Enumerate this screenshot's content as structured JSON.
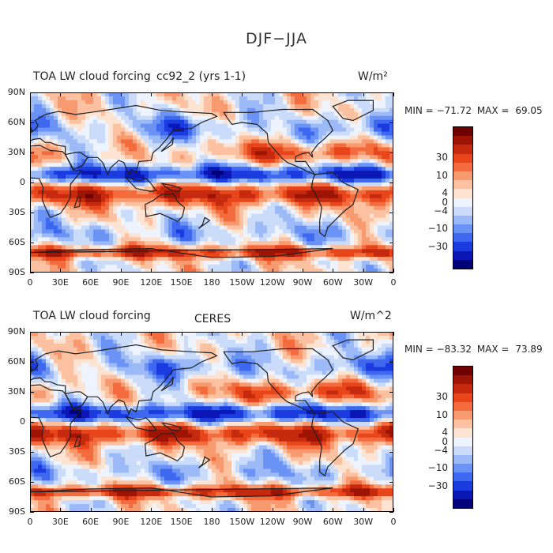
{
  "figure": {
    "title": "DJF−JJA",
    "colors": {
      "land": "#202020",
      "levels": [
        "#00007a",
        "#0a17b5",
        "#1a3be0",
        "#3d68ef",
        "#6a93f5",
        "#9cbaf8",
        "#cbdcfb",
        "#eef4ff",
        "#fde4d2",
        "#fbc1a0",
        "#f89a70",
        "#f46c3e",
        "#e8451a",
        "#c52a0e",
        "#9e1404",
        "#700000"
      ]
    }
  },
  "panels": [
    {
      "title": "TOA LW cloud forcing",
      "subtitle": "cc92_2 (yrs 1-1)",
      "units": "W/m²",
      "min_label": "MIN =",
      "min_value": "−71.72",
      "max_label": "MAX =",
      "max_value": "69.05",
      "colorbar_labels": [
        "30",
        "10",
        "4",
        "0",
        "−4",
        "−10",
        "−30"
      ]
    },
    {
      "title": "TOA LW cloud forcing",
      "subtitle": "CERES",
      "units": "W/m^2",
      "min_label": "MIN =",
      "min_value": "−83.32",
      "max_label": "MAX =",
      "max_value": "73.89",
      "colorbar_labels": [
        "30",
        "10",
        "4",
        "0",
        "−4",
        "−10",
        "−30"
      ]
    }
  ],
  "axes": {
    "lat_ticks": [
      "90N",
      "60N",
      "30N",
      "0",
      "30S",
      "60S",
      "90S"
    ],
    "lon_ticks": [
      "0",
      "30E",
      "60E",
      "90E",
      "120E",
      "150E",
      "180",
      "150W",
      "120W",
      "90W",
      "60W",
      "30W",
      "0"
    ]
  }
}
